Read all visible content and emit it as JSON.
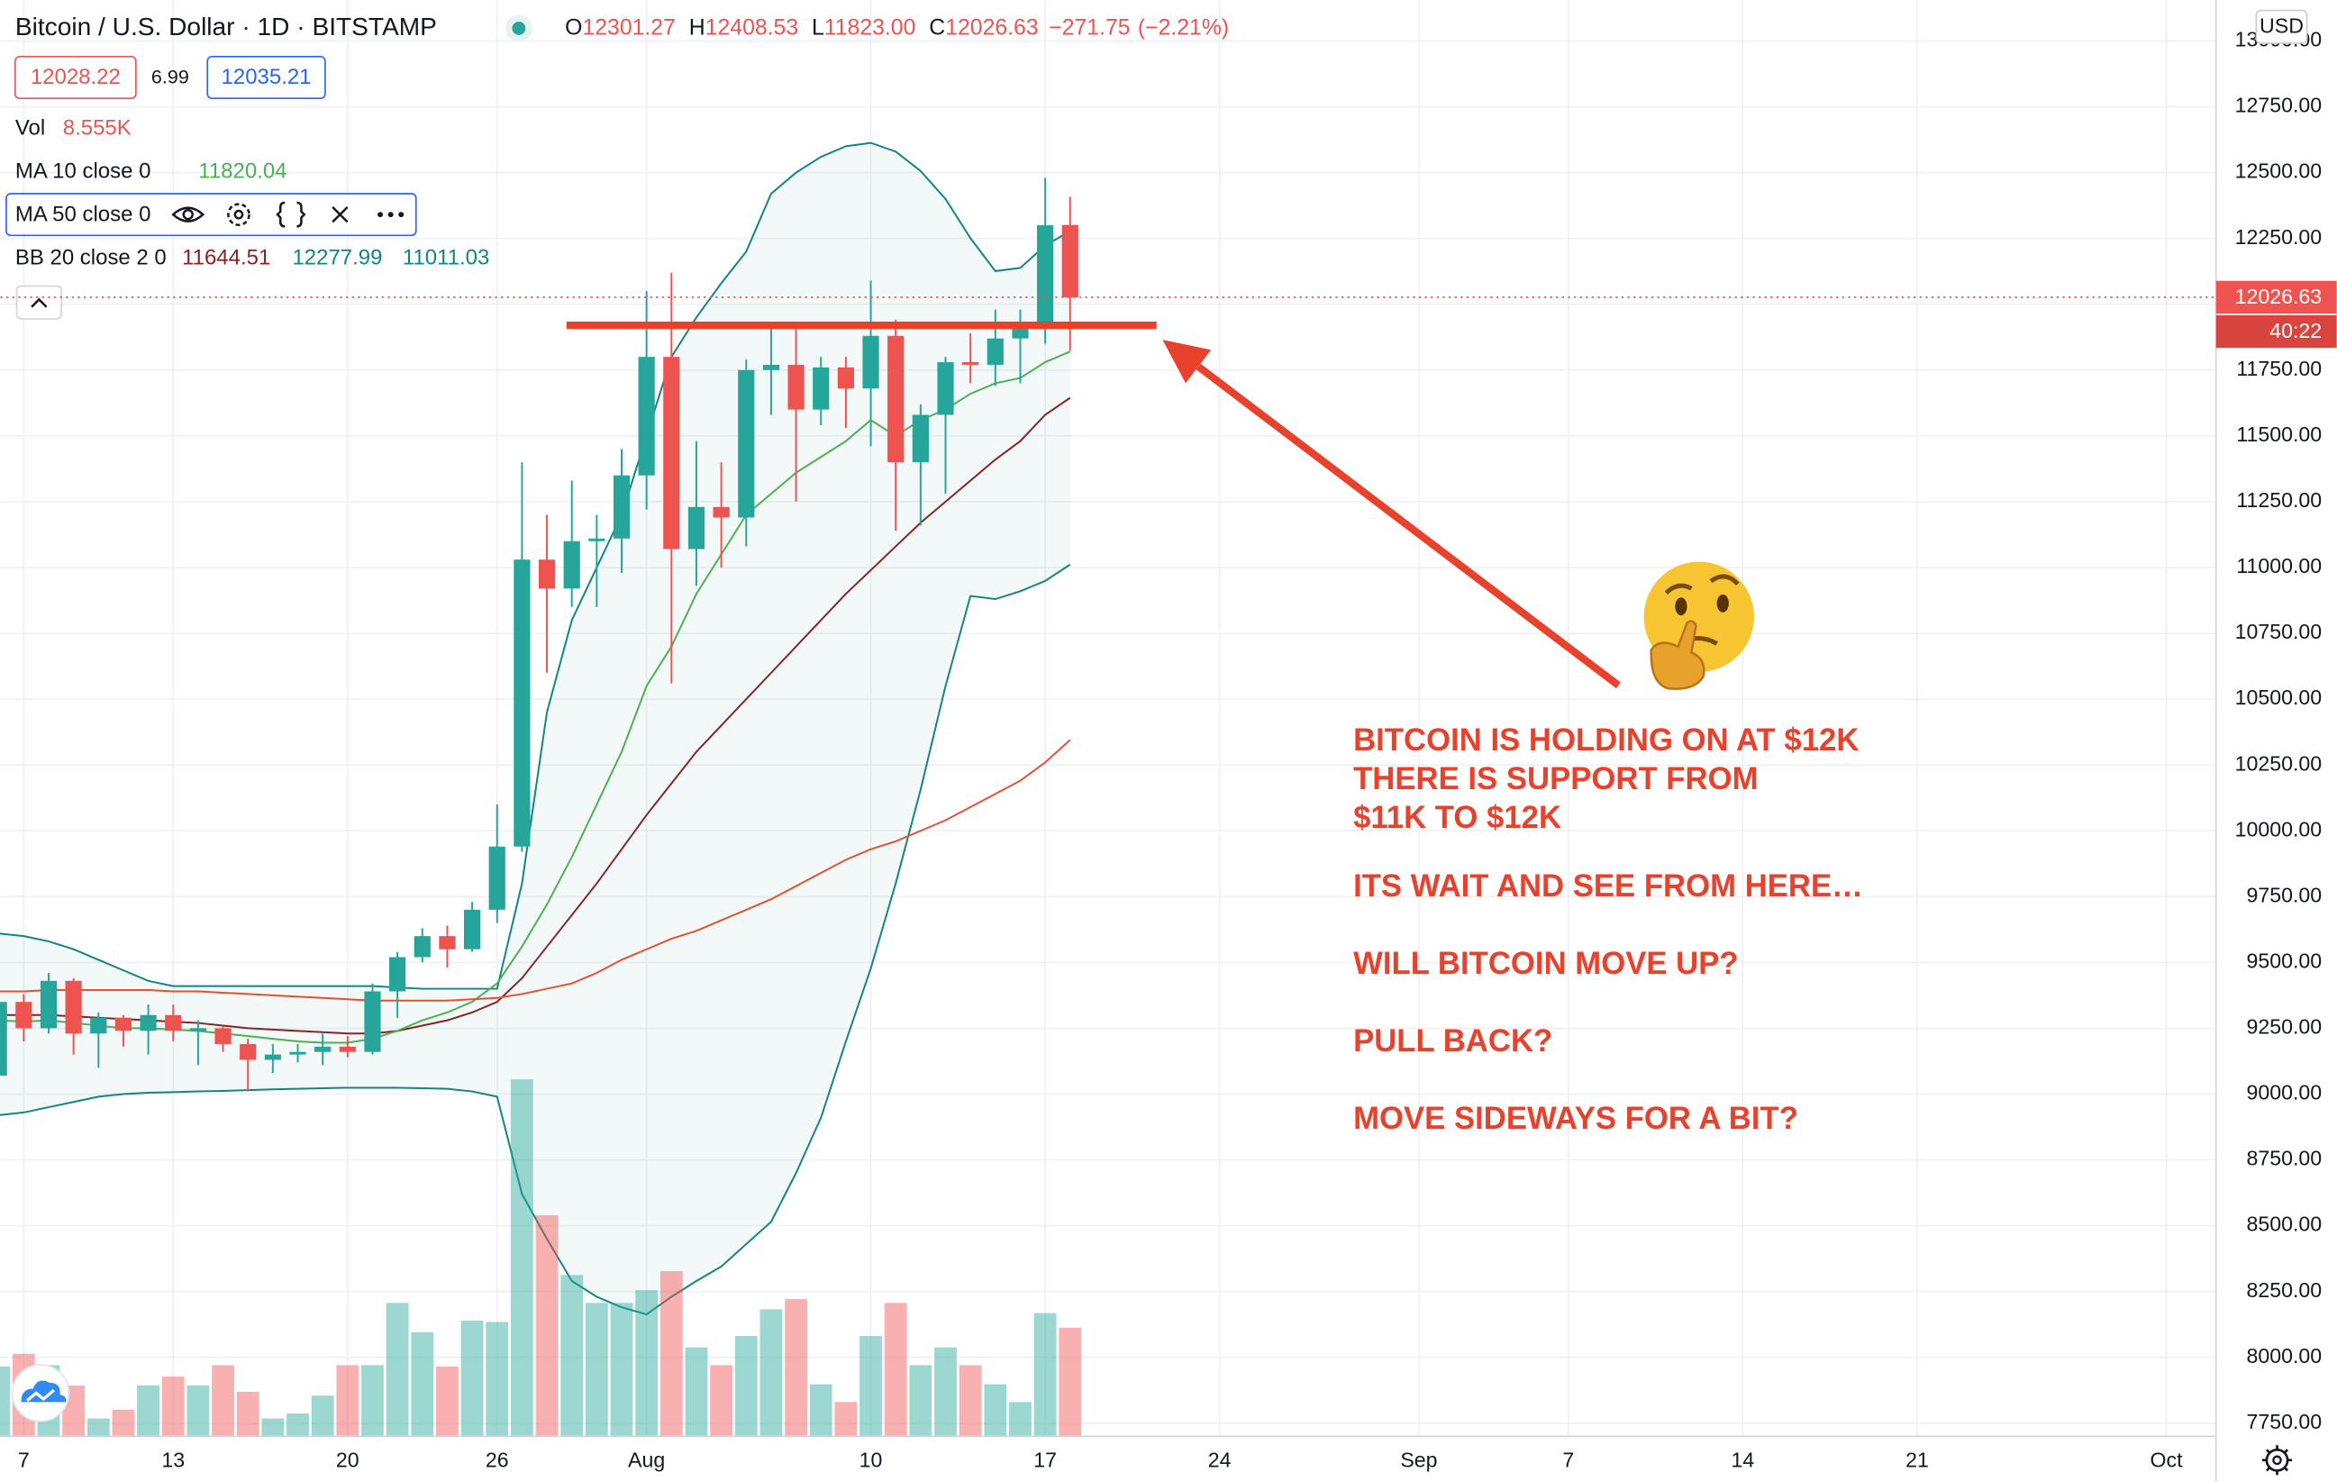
{
  "chart_data": {
    "type": "candlestick",
    "title": "Bitcoin / U.S. Dollar · 1D · BITSTAMP",
    "header": {
      "ohlc": [
        {
          "prefix": "O",
          "value": 12301.27
        },
        {
          "prefix": "H",
          "value": 12408.53
        },
        {
          "prefix": "L",
          "value": 11823,
          "label": "11823.00"
        },
        {
          "prefix": "C",
          "value": 12026.63
        }
      ],
      "change": {
        "value": -271.75,
        "label": "−271.75"
      },
      "change_pct": {
        "value": -2.21,
        "label": "(−2.21%)"
      }
    },
    "bid": 12028.22,
    "spread": 6.99,
    "ask": 12035.21,
    "categories": [
      null,
      "7",
      null,
      null,
      null,
      null,
      null,
      "13",
      null,
      null,
      null,
      null,
      null,
      null,
      "20",
      null,
      null,
      null,
      null,
      null,
      "26",
      null,
      null,
      null,
      null,
      null,
      "Aug",
      null,
      null,
      null,
      null,
      null,
      null,
      null,
      null,
      "10",
      null,
      null,
      null,
      null,
      null,
      null,
      "17",
      null,
      null,
      null,
      null,
      null,
      null,
      "24",
      null,
      null,
      null,
      null,
      null,
      null,
      null,
      "Sep",
      null,
      null,
      null,
      null,
      null,
      "7",
      null,
      null,
      null,
      null,
      null,
      null,
      "14",
      null,
      null,
      null,
      null,
      null,
      null,
      "21",
      null,
      null,
      null,
      null,
      null,
      null,
      null,
      null,
      null,
      "Oct",
      null
    ],
    "open": [
      9070,
      9350,
      9250,
      9430,
      9230,
      9290,
      9240,
      9300,
      9240,
      9250,
      9190,
      9130,
      9150,
      9160,
      9180,
      9160,
      9390,
      9520,
      9600,
      9550,
      9700,
      9940,
      11030,
      10920,
      11100,
      11110,
      11350,
      11800,
      11070,
      11230,
      11190,
      11750,
      11770,
      11600,
      11760,
      11680,
      11880,
      11400,
      11580,
      11780,
      11770,
      11870,
      11910,
      12301.27,
      null,
      null,
      null,
      null,
      null,
      null,
      null,
      null,
      null,
      null,
      null,
      null,
      null,
      null,
      null,
      null,
      null,
      null,
      null,
      null,
      null,
      null,
      null,
      null,
      null,
      null,
      null,
      null,
      null,
      null,
      null,
      null,
      null,
      null,
      null,
      null,
      null,
      null,
      null,
      null,
      null,
      null,
      null,
      null,
      null
    ],
    "high": [
      9370,
      9380,
      9460,
      9440,
      9310,
      9300,
      9340,
      9340,
      9280,
      9260,
      9210,
      9190,
      9190,
      9230,
      9220,
      9420,
      9540,
      9630,
      9640,
      9730,
      10100,
      11400,
      11200,
      11330,
      11200,
      11450,
      12050,
      12120,
      11480,
      11400,
      11790,
      11910,
      11920,
      11800,
      11800,
      12090,
      11940,
      11620,
      11800,
      11890,
      11980,
      11980,
      12480,
      12408.53,
      null,
      null,
      null,
      null,
      null,
      null,
      null,
      null,
      null,
      null,
      null,
      null,
      null,
      null,
      null,
      null,
      null,
      null,
      null,
      null,
      null,
      null,
      null,
      null,
      null,
      null,
      null,
      null,
      null,
      null,
      null,
      null,
      null,
      null,
      null,
      null,
      null,
      null,
      null,
      null,
      null,
      null,
      null,
      null,
      null
    ],
    "low": [
      9060,
      9200,
      9230,
      9150,
      9100,
      9180,
      9150,
      9200,
      9110,
      9160,
      9010,
      9080,
      9120,
      9110,
      9140,
      9150,
      9290,
      9500,
      9480,
      9540,
      9650,
      9920,
      10600,
      10850,
      10850,
      10980,
      11220,
      10560,
      10930,
      11000,
      11080,
      11580,
      11250,
      11540,
      11530,
      11460,
      11140,
      11160,
      11280,
      11700,
      11690,
      11700,
      11850,
      11823,
      null,
      null,
      null,
      null,
      null,
      null,
      null,
      null,
      null,
      null,
      null,
      null,
      null,
      null,
      null,
      null,
      null,
      null,
      null,
      null,
      null,
      null,
      null,
      null,
      null,
      null,
      null,
      null,
      null,
      null,
      null,
      null,
      null,
      null,
      null,
      null,
      null,
      null,
      null,
      null,
      null,
      null,
      null,
      null,
      null
    ],
    "close": [
      9350,
      9250,
      9430,
      9230,
      9290,
      9240,
      9300,
      9240,
      9250,
      9190,
      9130,
      9150,
      9160,
      9180,
      9160,
      9390,
      9520,
      9600,
      9550,
      9700,
      9940,
      11030,
      10920,
      11100,
      11110,
      11350,
      11800,
      11070,
      11230,
      11190,
      11750,
      11770,
      11600,
      11760,
      11680,
      11880,
      11400,
      11580,
      11780,
      11770,
      11870,
      11910,
      12300,
      12026.63,
      null,
      null,
      null,
      null,
      null,
      null,
      null,
      null,
      null,
      null,
      null,
      null,
      null,
      null,
      null,
      null,
      null,
      null,
      null,
      null,
      null,
      null,
      null,
      null,
      null,
      null,
      null,
      null,
      null,
      null,
      null,
      null,
      null,
      null,
      null,
      null,
      null,
      null,
      null,
      null,
      null,
      null,
      null,
      null,
      null
    ],
    "up_color": "#26a69a",
    "down_color": "#ef5350",
    "volume": {
      "name": "Vol",
      "legend_value": {
        "value": 8.555,
        "label": "8.555K"
      },
      "ylim": [
        0,
        40
      ],
      "values": [
        5.5,
        6.5,
        5.6,
        4.0,
        1.4,
        2.1,
        4.0,
        4.7,
        4.0,
        5.6,
        3.5,
        1.4,
        1.8,
        3.2,
        5.6,
        5.6,
        10.5,
        8.2,
        5.5,
        9.1,
        9.0,
        28.1,
        17.4,
        12.7,
        10.5,
        10.5,
        11.5,
        13.0,
        7.0,
        5.6,
        7.9,
        10.0,
        10.8,
        4.1,
        2.7,
        7.9,
        10.5,
        5.6,
        7.0,
        5.6,
        4.1,
        2.7,
        9.7,
        8.555,
        null,
        null,
        null,
        null,
        null,
        null,
        null,
        null,
        null,
        null,
        null,
        null,
        null,
        null,
        null,
        null,
        null,
        null,
        null,
        null,
        null,
        null,
        null,
        null,
        null,
        null,
        null,
        null,
        null,
        null,
        null,
        null,
        null,
        null,
        null,
        null,
        null,
        null,
        null,
        null,
        null,
        null,
        null,
        null,
        null
      ]
    },
    "series": [
      {
        "name": "MA 10 close 0",
        "color": "#4caf50",
        "values": [
          9280,
          9275,
          9280,
          9270,
          9260,
          9250,
          9250,
          9245,
          9240,
          9230,
          9220,
          9210,
          9200,
          9195,
          9195,
          9210,
          9240,
          9280,
          9310,
          9350,
          9420,
          9560,
          9720,
          9900,
          10100,
          10300,
          10550,
          10700,
          10900,
          11050,
          11200,
          11280,
          11360,
          11420,
          11480,
          11560,
          11500,
          11560,
          11600,
          11660,
          11700,
          11720,
          11780,
          11820.04,
          null,
          null,
          null,
          null,
          null,
          null,
          null,
          null,
          null,
          null,
          null,
          null,
          null,
          null,
          null,
          null,
          null,
          null,
          null,
          null,
          null,
          null,
          null,
          null,
          null,
          null,
          null,
          null,
          null,
          null,
          null,
          null,
          null,
          null,
          null,
          null,
          null,
          null,
          null,
          null,
          null,
          null,
          null,
          null,
          null
        ]
      },
      {
        "name": "MA 50 close 0",
        "color": "#e5502f",
        "values": [
          9390,
          9390,
          9395,
          9395,
          9395,
          9395,
          9395,
          9390,
          9390,
          9385,
          9380,
          9375,
          9370,
          9365,
          9360,
          9355,
          9355,
          9355,
          9355,
          9360,
          9365,
          9380,
          9400,
          9420,
          9460,
          9510,
          9550,
          9590,
          9620,
          9660,
          9700,
          9740,
          9790,
          9840,
          9890,
          9930,
          9960,
          10000,
          10040,
          10090,
          10140,
          10190,
          10260,
          10345,
          null,
          null,
          null,
          null,
          null,
          null,
          null,
          null,
          null,
          null,
          null,
          null,
          null,
          null,
          null,
          null,
          null,
          null,
          null,
          null,
          null,
          null,
          null,
          null,
          null,
          null,
          null,
          null,
          null,
          null,
          null,
          null,
          null,
          null,
          null,
          null,
          null,
          null,
          null,
          null,
          null,
          null,
          null,
          null,
          null
        ]
      }
    ],
    "bollinger": {
      "name": "BB 20 close 2 0",
      "basis_color": "#872323",
      "band_color": "#138484",
      "basis": [
        9300,
        9300,
        9300,
        9295,
        9290,
        9285,
        9280,
        9275,
        9270,
        9260,
        9250,
        9245,
        9240,
        9235,
        9230,
        9230,
        9240,
        9260,
        9280,
        9310,
        9350,
        9440,
        9560,
        9680,
        9800,
        9930,
        10060,
        10180,
        10300,
        10400,
        10500,
        10600,
        10700,
        10800,
        10900,
        10990,
        11080,
        11170,
        11250,
        11330,
        11410,
        11480,
        11580,
        11644.51,
        null,
        null,
        null,
        null,
        null,
        null,
        null,
        null,
        null,
        null,
        null,
        null,
        null,
        null,
        null,
        null,
        null,
        null,
        null,
        null,
        null,
        null,
        null,
        null,
        null,
        null,
        null,
        null,
        null,
        null,
        null,
        null,
        null,
        null,
        null,
        null,
        null,
        null,
        null,
        null,
        null,
        null,
        null,
        null,
        null
      ],
      "upper": [
        9610,
        9600,
        9580,
        9550,
        9510,
        9470,
        9430,
        9410,
        9410,
        9410,
        9410,
        9410,
        9410,
        9410,
        9410,
        9410,
        9405,
        9400,
        9400,
        9400,
        9400,
        9800,
        10450,
        10800,
        11000,
        11200,
        11500,
        11800,
        11950,
        12080,
        12200,
        12420,
        12500,
        12560,
        12600,
        12613,
        12580,
        12506,
        12400,
        12251,
        12126,
        12138,
        12223,
        12277.99,
        null,
        null,
        null,
        null,
        null,
        null,
        null,
        null,
        null,
        null,
        null,
        null,
        null,
        null,
        null,
        null,
        null,
        null,
        null,
        null,
        null,
        null,
        null,
        null,
        null,
        null,
        null,
        null,
        null,
        null,
        null,
        null,
        null,
        null,
        null,
        null,
        null,
        null,
        null,
        null,
        null,
        null,
        null,
        null,
        null
      ],
      "lower": [
        8920,
        8930,
        8950,
        8970,
        8990,
        9000,
        9005,
        9007,
        9010,
        9012,
        9015,
        9018,
        9020,
        9022,
        9024,
        9024,
        9024,
        9022,
        9020,
        9010,
        8990,
        8620,
        8450,
        8290,
        8230,
        8190,
        8163,
        8230,
        8290,
        8345,
        8430,
        8515,
        8700,
        8910,
        9200,
        9477,
        9800,
        10156,
        10550,
        10892,
        10880,
        10910,
        10949,
        11011.03,
        null,
        null,
        null,
        null,
        null,
        null,
        null,
        null,
        null,
        null,
        null,
        null,
        null,
        null,
        null,
        null,
        null,
        null,
        null,
        null,
        null,
        null,
        null,
        null,
        null,
        null,
        null,
        null,
        null,
        null,
        null,
        null,
        null,
        null,
        null,
        null,
        null,
        null,
        null,
        null,
        null,
        null,
        null,
        null,
        null
      ]
    },
    "ylim": [
      7700,
      13150
    ],
    "yticks": [
      {
        "value": 7750,
        "label": "7750.00"
      },
      {
        "value": 8000,
        "label": "8000.00"
      },
      {
        "value": 8250,
        "label": "8250.00"
      },
      {
        "value": 8500,
        "label": "8500.00"
      },
      {
        "value": 8750,
        "label": "8750.00"
      },
      {
        "value": 9000,
        "label": "9000.00"
      },
      {
        "value": 9250,
        "label": "9250.00"
      },
      {
        "value": 9500,
        "label": "9500.00"
      },
      {
        "value": 9750,
        "label": "9750.00"
      },
      {
        "value": 10000,
        "label": "10000.00"
      },
      {
        "value": 10250,
        "label": "10250.00"
      },
      {
        "value": 10500,
        "label": "10500.00"
      },
      {
        "value": 10750,
        "label": "10750.00"
      },
      {
        "value": 11000,
        "label": "11000.00"
      },
      {
        "value": 11250,
        "label": "11250.00"
      },
      {
        "value": 11500,
        "label": "11500.00"
      },
      {
        "value": 11750,
        "label": "11750.00"
      },
      {
        "value": 12000,
        "label": "12000.00"
      },
      {
        "value": 12250,
        "label": "12250.00"
      },
      {
        "value": 12500,
        "label": "12500.00"
      },
      {
        "value": 12750,
        "label": "12750.00"
      },
      {
        "value": 13000,
        "label": "13000.00"
      }
    ],
    "grid": true,
    "price_axis_unit": "USD",
    "countdown": "40:22",
    "support_line": 11920,
    "annotation_color": "#e8412c",
    "annotations": [
      "BITCOIN IS HOLDING ON AT $12K",
      "THERE IS SUPPORT FROM",
      "$11K TO $12K",
      "ITS WAIT AND SEE FROM HERE…",
      "WILL BITCOIN MOVE UP?",
      "PULL BACK?",
      "MOVE SIDEWAYS FOR A BIT?"
    ]
  }
}
